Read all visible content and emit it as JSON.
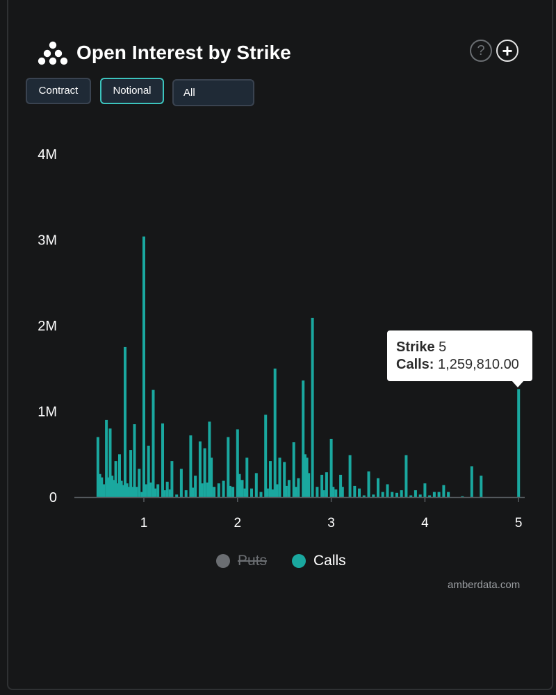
{
  "header": {
    "title": "Open Interest by Strike",
    "help_glyph": "?",
    "add_glyph": "+"
  },
  "controls": {
    "contract_label": "Contract",
    "notional_label": "Notional",
    "active": "Notional",
    "filter_value": "All"
  },
  "tooltip": {
    "strike_key": "Strike",
    "strike_value": "5",
    "calls_key": "Calls:",
    "calls_value": "1,259,810.00"
  },
  "legend": {
    "puts_label": "Puts",
    "calls_label": "Calls"
  },
  "source": "amberdata.com",
  "colors": {
    "calls": "#1aa89f",
    "puts_disabled": "#6b6e72",
    "background": "#161718"
  },
  "chart_data": {
    "type": "bar",
    "xlabel": "",
    "ylabel": "",
    "xlim": [
      0.25,
      5.0
    ],
    "ylim": [
      0,
      4000000
    ],
    "x_ticks": [
      {
        "v": 1,
        "label": "1"
      },
      {
        "v": 2,
        "label": "2"
      },
      {
        "v": 3,
        "label": "3"
      },
      {
        "v": 4,
        "label": "4"
      },
      {
        "v": 5,
        "label": "5"
      }
    ],
    "y_ticks": [
      {
        "v": 0,
        "label": "0"
      },
      {
        "v": 1000000,
        "label": "1M"
      },
      {
        "v": 2000000,
        "label": "2M"
      },
      {
        "v": 3000000,
        "label": "3M"
      },
      {
        "v": 4000000,
        "label": "4M"
      }
    ],
    "grid": false,
    "legend_position": "bottom-center",
    "series": [
      {
        "name": "Puts",
        "visible": false,
        "points": []
      },
      {
        "name": "Calls",
        "visible": true,
        "points": [
          [
            0.51,
            700000
          ],
          [
            0.53,
            270000
          ],
          [
            0.55,
            230000
          ],
          [
            0.57,
            150000
          ],
          [
            0.6,
            900000
          ],
          [
            0.62,
            230000
          ],
          [
            0.64,
            800000
          ],
          [
            0.66,
            250000
          ],
          [
            0.68,
            200000
          ],
          [
            0.7,
            420000
          ],
          [
            0.72,
            160000
          ],
          [
            0.74,
            500000
          ],
          [
            0.76,
            190000
          ],
          [
            0.78,
            140000
          ],
          [
            0.8,
            1750000
          ],
          [
            0.82,
            160000
          ],
          [
            0.84,
            120000
          ],
          [
            0.86,
            550000
          ],
          [
            0.88,
            120000
          ],
          [
            0.9,
            850000
          ],
          [
            0.92,
            120000
          ],
          [
            0.95,
            330000
          ],
          [
            0.98,
            60000
          ],
          [
            1.0,
            3040000
          ],
          [
            1.02,
            150000
          ],
          [
            1.05,
            600000
          ],
          [
            1.07,
            170000
          ],
          [
            1.1,
            1250000
          ],
          [
            1.12,
            100000
          ],
          [
            1.15,
            150000
          ],
          [
            1.2,
            860000
          ],
          [
            1.22,
            80000
          ],
          [
            1.25,
            180000
          ],
          [
            1.28,
            90000
          ],
          [
            1.3,
            420000
          ],
          [
            1.35,
            30000
          ],
          [
            1.4,
            330000
          ],
          [
            1.45,
            80000
          ],
          [
            1.5,
            720000
          ],
          [
            1.52,
            110000
          ],
          [
            1.55,
            250000
          ],
          [
            1.6,
            650000
          ],
          [
            1.62,
            160000
          ],
          [
            1.65,
            570000
          ],
          [
            1.68,
            170000
          ],
          [
            1.7,
            880000
          ],
          [
            1.72,
            460000
          ],
          [
            1.75,
            120000
          ],
          [
            1.8,
            160000
          ],
          [
            1.85,
            190000
          ],
          [
            1.9,
            700000
          ],
          [
            1.92,
            130000
          ],
          [
            1.95,
            120000
          ],
          [
            2.0,
            790000
          ],
          [
            2.02,
            270000
          ],
          [
            2.05,
            200000
          ],
          [
            2.08,
            100000
          ],
          [
            2.1,
            460000
          ],
          [
            2.15,
            100000
          ],
          [
            2.2,
            280000
          ],
          [
            2.25,
            60000
          ],
          [
            2.3,
            960000
          ],
          [
            2.32,
            100000
          ],
          [
            2.35,
            420000
          ],
          [
            2.38,
            90000
          ],
          [
            2.4,
            1500000
          ],
          [
            2.42,
            150000
          ],
          [
            2.45,
            460000
          ],
          [
            2.5,
            410000
          ],
          [
            2.52,
            130000
          ],
          [
            2.55,
            200000
          ],
          [
            2.6,
            640000
          ],
          [
            2.62,
            120000
          ],
          [
            2.65,
            220000
          ],
          [
            2.7,
            1360000
          ],
          [
            2.72,
            500000
          ],
          [
            2.74,
            460000
          ],
          [
            2.76,
            280000
          ],
          [
            2.8,
            2090000
          ],
          [
            2.85,
            120000
          ],
          [
            2.9,
            260000
          ],
          [
            2.92,
            80000
          ],
          [
            2.95,
            290000
          ],
          [
            3.0,
            680000
          ],
          [
            3.02,
            120000
          ],
          [
            3.05,
            90000
          ],
          [
            3.1,
            260000
          ],
          [
            3.12,
            120000
          ],
          [
            3.2,
            490000
          ],
          [
            3.25,
            130000
          ],
          [
            3.3,
            100000
          ],
          [
            3.35,
            20000
          ],
          [
            3.4,
            300000
          ],
          [
            3.45,
            30000
          ],
          [
            3.5,
            220000
          ],
          [
            3.55,
            60000
          ],
          [
            3.6,
            150000
          ],
          [
            3.65,
            60000
          ],
          [
            3.7,
            50000
          ],
          [
            3.75,
            80000
          ],
          [
            3.8,
            490000
          ],
          [
            3.85,
            20000
          ],
          [
            3.9,
            80000
          ],
          [
            3.95,
            30000
          ],
          [
            4.0,
            160000
          ],
          [
            4.05,
            20000
          ],
          [
            4.1,
            60000
          ],
          [
            4.15,
            60000
          ],
          [
            4.2,
            140000
          ],
          [
            4.25,
            60000
          ],
          [
            4.4,
            10000
          ],
          [
            4.5,
            360000
          ],
          [
            4.6,
            250000
          ],
          [
            5.0,
            1259810
          ]
        ]
      }
    ]
  }
}
